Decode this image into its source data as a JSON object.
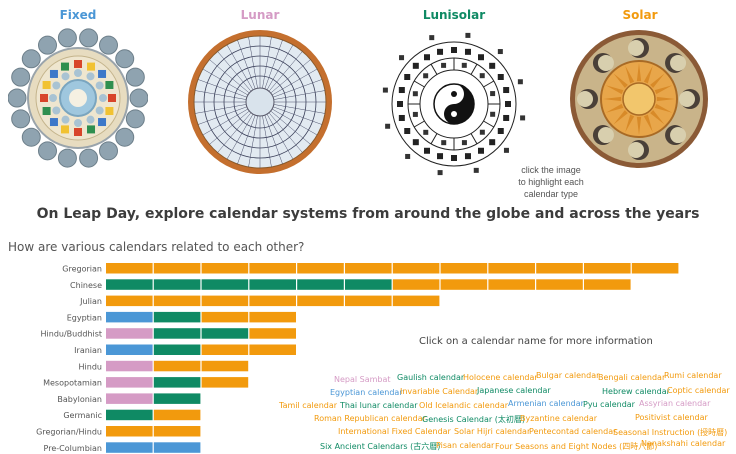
{
  "types": [
    {
      "label": "Fixed",
      "color": "#4b97d6"
    },
    {
      "label": "Lunar",
      "color": "#d59bc5"
    },
    {
      "label": "Lunisolar",
      "color": "#0f8a64"
    },
    {
      "label": "Solar",
      "color": "#f29a0d"
    }
  ],
  "hint": [
    "click the image",
    "to highlight each",
    "calendar type"
  ],
  "headline": "On Leap Day, explore calendar systems from around the globe and across the years",
  "question": "How are various calendars related to each other?",
  "click_info": "Click on a calendar name for more information",
  "chart_data": {
    "type": "bar",
    "orientation": "horizontal",
    "stacked": true,
    "categories": [
      "Gregorian",
      "Chinese",
      "Julian",
      "Egyptian",
      "Hindu/Buddhist",
      "Iranian",
      "Hindu",
      "Mesopotamian",
      "Babylonian",
      "Germanic",
      "Gregorian/Hindu",
      "Pre-Columbian"
    ],
    "series_colors": {
      "fixed": "#4b97d6",
      "lunar": "#d59bc5",
      "lunisolar": "#0f8a64",
      "solar": "#f29a0d"
    },
    "rows": [
      {
        "segments": [
          [
            "solar",
            12
          ]
        ]
      },
      {
        "segments": [
          [
            "lunisolar",
            6
          ],
          [
            "solar",
            5
          ]
        ]
      },
      {
        "segments": [
          [
            "solar",
            7
          ]
        ]
      },
      {
        "segments": [
          [
            "fixed",
            1
          ],
          [
            "lunisolar",
            1
          ],
          [
            "solar",
            2
          ]
        ]
      },
      {
        "segments": [
          [
            "lunar",
            1
          ],
          [
            "lunisolar",
            2
          ],
          [
            "solar",
            1
          ]
        ]
      },
      {
        "segments": [
          [
            "fixed",
            1
          ],
          [
            "lunisolar",
            1
          ],
          [
            "solar",
            2
          ]
        ]
      },
      {
        "segments": [
          [
            "lunar",
            1
          ],
          [
            "solar",
            2
          ]
        ]
      },
      {
        "segments": [
          [
            "lunar",
            1
          ],
          [
            "lunisolar",
            1
          ],
          [
            "solar",
            1
          ]
        ]
      },
      {
        "segments": [
          [
            "lunar",
            1
          ],
          [
            "lunisolar",
            1
          ]
        ]
      },
      {
        "segments": [
          [
            "lunisolar",
            1
          ],
          [
            "solar",
            1
          ]
        ]
      },
      {
        "segments": [
          [
            "solar",
            2
          ]
        ]
      },
      {
        "segments": [
          [
            "fixed",
            2
          ]
        ]
      }
    ]
  },
  "calendar_names": [
    {
      "text": "Nepal Sambat",
      "type": "lunar"
    },
    {
      "text": "Gaulish calendar",
      "type": "lunisolar"
    },
    {
      "text": "Holocene calendar",
      "type": "solar"
    },
    {
      "text": "Bulgar calendar",
      "type": "solar"
    },
    {
      "text": "Bengali calendar",
      "type": "solar"
    },
    {
      "text": "Rumi calendar",
      "type": "solar"
    },
    {
      "text": "Egyptian calendar",
      "type": "fixed"
    },
    {
      "text": "Invariable Calendar",
      "type": "solar"
    },
    {
      "text": "Japanese calendar",
      "type": "lunisolar"
    },
    {
      "text": "Hebrew calendar",
      "type": "lunisolar"
    },
    {
      "text": "Coptic calendar",
      "type": "solar"
    },
    {
      "text": "Tamil calendar",
      "type": "solar"
    },
    {
      "text": "Thai lunar calendar",
      "type": "lunisolar"
    },
    {
      "text": "Old Icelandic calendar",
      "type": "solar"
    },
    {
      "text": "Armenian calendar",
      "type": "fixed"
    },
    {
      "text": "Pyu calendar",
      "type": "lunisolar"
    },
    {
      "text": "Assyrian calendar",
      "type": "lunar"
    },
    {
      "text": "Roman Republican calendar",
      "type": "solar"
    },
    {
      "text": "Genesis Calendar (太初曆)",
      "type": "lunisolar"
    },
    {
      "text": "Byzantine calendar",
      "type": "solar"
    },
    {
      "text": "Positivist calendar",
      "type": "solar"
    },
    {
      "text": "International Fixed Calendar",
      "type": "solar"
    },
    {
      "text": "Solar Hijri calendar",
      "type": "solar"
    },
    {
      "text": "Pentecontad calendar",
      "type": "solar"
    },
    {
      "text": "Seasonal Instruction (授時曆)",
      "type": "solar"
    },
    {
      "text": "Six Ancient Calendars (古六曆)",
      "type": "lunisolar"
    },
    {
      "text": "Pisan calendar",
      "type": "solar"
    },
    {
      "text": "Four Seasons and Eight Nodes (四時八節)",
      "type": "solar"
    },
    {
      "text": "Nanakshahi calendar",
      "type": "solar"
    }
  ]
}
